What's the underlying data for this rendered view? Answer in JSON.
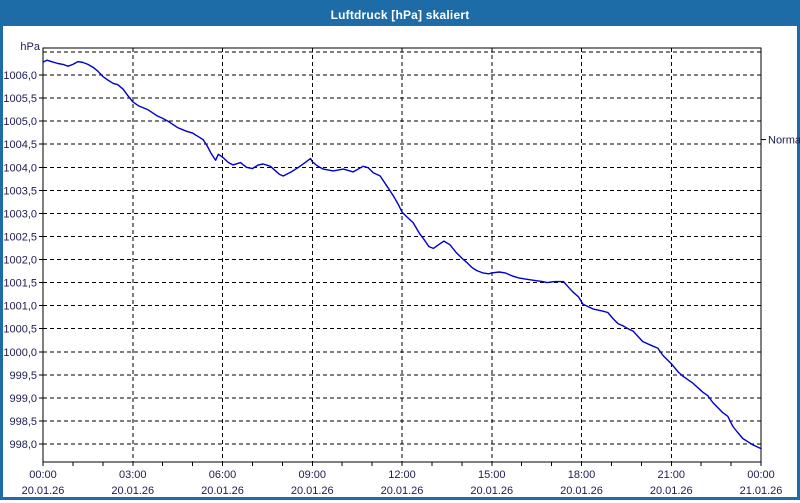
{
  "window": {
    "title": "Luftdruck [hPa] skaliert"
  },
  "colors": {
    "frame": "#1d6ca7",
    "title_text": "#ffffff",
    "plot_background": "#ffffff",
    "grid": "#000000",
    "axis": "#000000",
    "label_text": "#1c1c4e",
    "curve": "#0000cc"
  },
  "chart_data": {
    "type": "line",
    "title": "Luftdruck [hPa] skaliert",
    "ylabel": "hPa",
    "xlabel": "",
    "grid": true,
    "legend_position": "none",
    "y_axis": {
      "min": 997.55,
      "max": 1006.6,
      "tick_step": 0.5,
      "tick_values": [
        1006.0,
        1005.5,
        1005.0,
        1004.5,
        1004.0,
        1003.5,
        1003.0,
        1002.5,
        1002.0,
        1001.5,
        1001.0,
        1000.5,
        1000.0,
        999.5,
        999.0,
        998.5,
        998.0
      ],
      "tick_labels": [
        "1006,0",
        "1005,5",
        "1005,0",
        "1004,5",
        "1004,0",
        "1003,5",
        "1003,0",
        "1002,5",
        "1002,0",
        "1001,5",
        "1001,0",
        "1000,5",
        "1000,0",
        "999,5",
        "999,0",
        "998,5",
        "998,0"
      ],
      "grid_top_value": 1006.5,
      "decimal_separator": ","
    },
    "x_axis": {
      "start_hour": 0,
      "end_hour": 24,
      "minor_tick_hours": 1,
      "ticks": [
        {
          "hour": 0,
          "time": "00:00",
          "date": "20.01.26"
        },
        {
          "hour": 3,
          "time": "03:00",
          "date": "20.01.26"
        },
        {
          "hour": 6,
          "time": "06:00",
          "date": "20.01.26"
        },
        {
          "hour": 9,
          "time": "09:00",
          "date": "20.01.26"
        },
        {
          "hour": 12,
          "time": "12:00",
          "date": "20.01.26"
        },
        {
          "hour": 15,
          "time": "15:00",
          "date": "20.01.26"
        },
        {
          "hour": 18,
          "time": "18:00",
          "date": "20.01.26"
        },
        {
          "hour": 21,
          "time": "21:00",
          "date": "20.01.26"
        },
        {
          "hour": 24,
          "time": "00:00",
          "date": "21.01.26"
        }
      ]
    },
    "annotations": [
      {
        "label": "Normal",
        "value": 1004.6,
        "side": "right"
      }
    ],
    "series": [
      {
        "name": "Luftdruck",
        "unit": "hPa",
        "color": "#0000cc",
        "points": [
          [
            0,
            1006.28
          ],
          [
            0.13,
            1006.32
          ],
          [
            0.33,
            1006.28
          ],
          [
            0.5,
            1006.25
          ],
          [
            0.67,
            1006.23
          ],
          [
            0.84,
            1006.19
          ],
          [
            1.0,
            1006.23
          ],
          [
            1.17,
            1006.29
          ],
          [
            1.34,
            1006.27
          ],
          [
            1.5,
            1006.23
          ],
          [
            1.67,
            1006.17
          ],
          [
            1.84,
            1006.08
          ],
          [
            2.0,
            1005.97
          ],
          [
            2.17,
            1005.89
          ],
          [
            2.34,
            1005.82
          ],
          [
            2.5,
            1005.79
          ],
          [
            2.68,
            1005.69
          ],
          [
            2.84,
            1005.55
          ],
          [
            3.0,
            1005.42
          ],
          [
            3.2,
            1005.33
          ],
          [
            3.5,
            1005.25
          ],
          [
            3.8,
            1005.12
          ],
          [
            4.0,
            1005.06
          ],
          [
            4.17,
            1005.0
          ],
          [
            4.5,
            1004.86
          ],
          [
            4.8,
            1004.78
          ],
          [
            5.0,
            1004.74
          ],
          [
            5.2,
            1004.66
          ],
          [
            5.35,
            1004.6
          ],
          [
            5.5,
            1004.45
          ],
          [
            5.62,
            1004.3
          ],
          [
            5.77,
            1004.15
          ],
          [
            5.86,
            1004.28
          ],
          [
            6.0,
            1004.22
          ],
          [
            6.2,
            1004.1
          ],
          [
            6.35,
            1004.05
          ],
          [
            6.6,
            1004.1
          ],
          [
            6.8,
            1004.0
          ],
          [
            7.0,
            1003.97
          ],
          [
            7.2,
            1004.05
          ],
          [
            7.36,
            1004.07
          ],
          [
            7.6,
            1004.02
          ],
          [
            7.9,
            1003.85
          ],
          [
            8.03,
            1003.81
          ],
          [
            8.3,
            1003.9
          ],
          [
            8.54,
            1004.0
          ],
          [
            8.8,
            1004.12
          ],
          [
            8.94,
            1004.19
          ],
          [
            9.0,
            1004.12
          ],
          [
            9.17,
            1004.03
          ],
          [
            9.37,
            1003.96
          ],
          [
            9.7,
            1003.92
          ],
          [
            10.04,
            1003.96
          ],
          [
            10.37,
            1003.9
          ],
          [
            10.7,
            1004.02
          ],
          [
            10.87,
            1003.99
          ],
          [
            11.04,
            1003.88
          ],
          [
            11.27,
            1003.81
          ],
          [
            11.5,
            1003.59
          ],
          [
            11.72,
            1003.37
          ],
          [
            11.88,
            1003.19
          ],
          [
            12.0,
            1003.03
          ],
          [
            12.17,
            1002.92
          ],
          [
            12.37,
            1002.8
          ],
          [
            12.6,
            1002.55
          ],
          [
            12.72,
            1002.45
          ],
          [
            12.9,
            1002.28
          ],
          [
            13.05,
            1002.24
          ],
          [
            13.2,
            1002.31
          ],
          [
            13.4,
            1002.4
          ],
          [
            13.6,
            1002.32
          ],
          [
            13.8,
            1002.16
          ],
          [
            14.0,
            1002.03
          ],
          [
            14.16,
            1001.94
          ],
          [
            14.33,
            1001.83
          ],
          [
            14.5,
            1001.76
          ],
          [
            14.7,
            1001.71
          ],
          [
            14.9,
            1001.69
          ],
          [
            15.0,
            1001.71
          ],
          [
            15.25,
            1001.73
          ],
          [
            15.45,
            1001.71
          ],
          [
            15.7,
            1001.64
          ],
          [
            15.9,
            1001.6
          ],
          [
            16.1,
            1001.58
          ],
          [
            16.4,
            1001.55
          ],
          [
            16.7,
            1001.52
          ],
          [
            16.85,
            1001.5
          ],
          [
            17.1,
            1001.52
          ],
          [
            17.4,
            1001.52
          ],
          [
            17.55,
            1001.41
          ],
          [
            17.72,
            1001.29
          ],
          [
            17.9,
            1001.19
          ],
          [
            18.05,
            1001.03
          ],
          [
            18.38,
            1000.93
          ],
          [
            18.72,
            1000.88
          ],
          [
            18.88,
            1000.85
          ],
          [
            19.05,
            1000.72
          ],
          [
            19.22,
            1000.61
          ],
          [
            19.39,
            1000.56
          ],
          [
            19.55,
            1000.5
          ],
          [
            19.72,
            1000.45
          ],
          [
            20.05,
            1000.22
          ],
          [
            20.39,
            1000.12
          ],
          [
            20.55,
            1000.08
          ],
          [
            20.72,
            999.92
          ],
          [
            21.0,
            999.74
          ],
          [
            21.25,
            999.55
          ],
          [
            21.39,
            999.47
          ],
          [
            21.72,
            999.32
          ],
          [
            22.06,
            999.12
          ],
          [
            22.22,
            999.05
          ],
          [
            22.39,
            998.9
          ],
          [
            22.72,
            998.68
          ],
          [
            22.89,
            998.6
          ],
          [
            23.06,
            998.38
          ],
          [
            23.22,
            998.25
          ],
          [
            23.39,
            998.12
          ],
          [
            23.56,
            998.05
          ],
          [
            23.73,
            997.98
          ],
          [
            24.0,
            997.9
          ]
        ]
      }
    ]
  }
}
